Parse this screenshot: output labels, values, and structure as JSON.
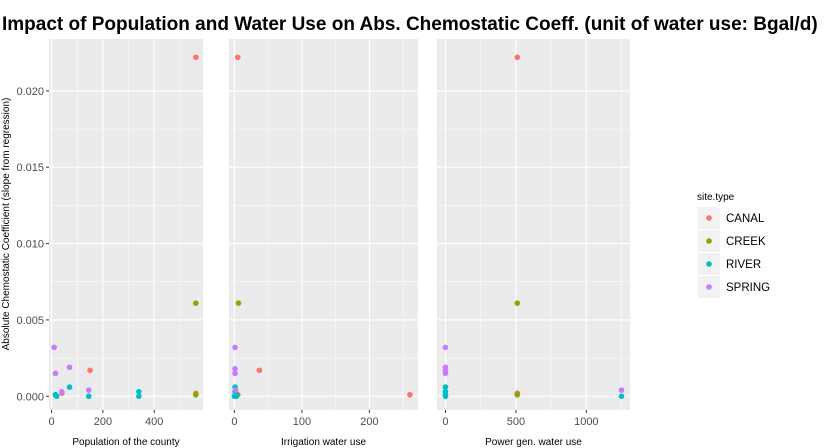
{
  "chart_data": {
    "type": "scatter",
    "title": "Impact of Population and Water Use on Abs. Chemostatic Coeff. (unit of water use: Bgal/d)",
    "ylabel": "Absolute Chemostatic Coefficient (slope from regression)",
    "ylim": [
      -0.0009,
      0.0234
    ],
    "yticks": [
      0.0,
      0.005,
      0.01,
      0.015,
      0.02
    ],
    "ytick_labels": [
      "0.000",
      "0.005",
      "0.010",
      "0.015",
      "0.020"
    ],
    "grid": true,
    "legend": {
      "title": "site.type",
      "placement": "right",
      "entries": [
        "CANAL",
        "CREEK",
        "RIVER",
        "SPRING"
      ]
    },
    "colors": {
      "CANAL": "#F8766D",
      "CREEK": "#7CAE00",
      "RIVER": "#00BFC4",
      "SPRING": "#C77CFF",
      "panel_bg": "#EBEBEB"
    },
    "panels": [
      {
        "xlabel": "Population of the county",
        "xlim": [
          -10,
          590
        ],
        "xticks": [
          0,
          200,
          400
        ],
        "xtick_labels": [
          "0",
          "200",
          "400"
        ],
        "points": [
          {
            "x": 562,
            "y": 0.0222,
            "type": "CANAL"
          },
          {
            "x": 562,
            "y": 0.0002,
            "type": "CANAL"
          },
          {
            "x": 150,
            "y": 0.0017,
            "type": "CANAL"
          },
          {
            "x": 15,
            "y": 0.0001,
            "type": "CANAL"
          },
          {
            "x": 40,
            "y": 0.0002,
            "type": "CANAL"
          },
          {
            "x": 562,
            "y": 0.0061,
            "type": "CREEK"
          },
          {
            "x": 562,
            "y": 0.0001,
            "type": "CREEK"
          },
          {
            "x": 70,
            "y": 0.0006,
            "type": "RIVER"
          },
          {
            "x": 340,
            "y": 0.0003,
            "type": "RIVER"
          },
          {
            "x": 340,
            "y": 0.0,
            "type": "RIVER"
          },
          {
            "x": 145,
            "y": 0.0,
            "type": "RIVER"
          },
          {
            "x": 15,
            "y": 0.0001,
            "type": "RIVER"
          },
          {
            "x": 20,
            "y": 0.0,
            "type": "RIVER"
          },
          {
            "x": 10,
            "y": 0.0032,
            "type": "SPRING"
          },
          {
            "x": 15,
            "y": 0.0015,
            "type": "SPRING"
          },
          {
            "x": 70,
            "y": 0.0019,
            "type": "SPRING"
          },
          {
            "x": 145,
            "y": 0.0004,
            "type": "SPRING"
          },
          {
            "x": 40,
            "y": 0.0003,
            "type": "SPRING"
          }
        ]
      },
      {
        "xlabel": "Irrigation water use",
        "xlim": [
          -8,
          272
        ],
        "xticks": [
          0,
          100,
          200
        ],
        "xtick_labels": [
          "0",
          "100",
          "200"
        ],
        "points": [
          {
            "x": 5,
            "y": 0.0222,
            "type": "CANAL"
          },
          {
            "x": 260,
            "y": 0.0001,
            "type": "CANAL"
          },
          {
            "x": 37,
            "y": 0.0017,
            "type": "CANAL"
          },
          {
            "x": 2,
            "y": 0.0002,
            "type": "CANAL"
          },
          {
            "x": 5,
            "y": 0.0001,
            "type": "CANAL"
          },
          {
            "x": 6,
            "y": 0.0061,
            "type": "CREEK"
          },
          {
            "x": 4,
            "y": 0.0001,
            "type": "CREEK"
          },
          {
            "x": 1,
            "y": 0.0006,
            "type": "RIVER"
          },
          {
            "x": 1,
            "y": 0.0003,
            "type": "RIVER"
          },
          {
            "x": 0,
            "y": 0.0,
            "type": "RIVER"
          },
          {
            "x": 2,
            "y": 0.0001,
            "type": "RIVER"
          },
          {
            "x": 3,
            "y": 0.0,
            "type": "RIVER"
          },
          {
            "x": 1,
            "y": 0.0032,
            "type": "SPRING"
          },
          {
            "x": 1,
            "y": 0.0018,
            "type": "SPRING"
          },
          {
            "x": 1,
            "y": 0.0015,
            "type": "SPRING"
          },
          {
            "x": 2,
            "y": 0.0004,
            "type": "SPRING"
          }
        ]
      },
      {
        "xlabel": "Power gen. water use",
        "xlim": [
          -60,
          1310
        ],
        "xticks": [
          0,
          500,
          1000
        ],
        "xtick_labels": [
          "0",
          "500",
          "1000"
        ],
        "points": [
          {
            "x": 510,
            "y": 0.0222,
            "type": "CANAL"
          },
          {
            "x": 510,
            "y": 0.0002,
            "type": "CANAL"
          },
          {
            "x": 510,
            "y": 0.0001,
            "type": "CANAL"
          },
          {
            "x": 0,
            "y": 0.0017,
            "type": "CANAL"
          },
          {
            "x": 510,
            "y": 0.0061,
            "type": "CREEK"
          },
          {
            "x": 510,
            "y": 0.0001,
            "type": "CREEK"
          },
          {
            "x": 0,
            "y": 0.0006,
            "type": "RIVER"
          },
          {
            "x": 0,
            "y": 0.0003,
            "type": "RIVER"
          },
          {
            "x": 0,
            "y": 0.0001,
            "type": "RIVER"
          },
          {
            "x": 0,
            "y": 0.0,
            "type": "RIVER"
          },
          {
            "x": 1250,
            "y": 0.0,
            "type": "RIVER"
          },
          {
            "x": 0,
            "y": 0.0032,
            "type": "SPRING"
          },
          {
            "x": 0,
            "y": 0.0019,
            "type": "SPRING"
          },
          {
            "x": 0,
            "y": 0.0017,
            "type": "SPRING"
          },
          {
            "x": 0,
            "y": 0.0015,
            "type": "SPRING"
          },
          {
            "x": 1250,
            "y": 0.0004,
            "type": "SPRING"
          }
        ]
      }
    ]
  }
}
